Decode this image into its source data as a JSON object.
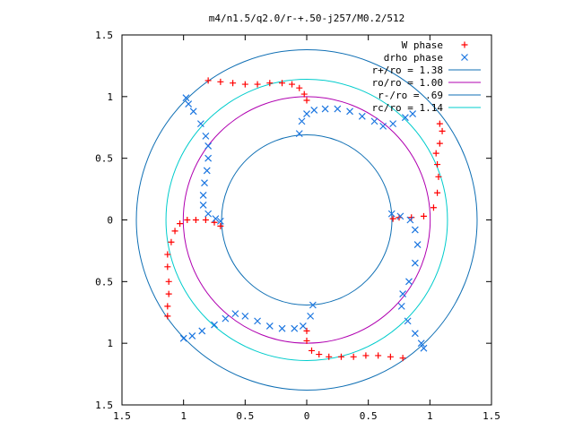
{
  "chart_data": {
    "type": "scatter",
    "title": "m4/n1.5/q2.0/r-+.50-j257/M0.2/512",
    "xlabel": "",
    "ylabel": "",
    "xlim": [
      -1.5,
      1.5
    ],
    "ylim": [
      -1.5,
      1.5
    ],
    "x_tick_values": [
      -1.5,
      -1,
      -0.5,
      0,
      0.5,
      1,
      1.5
    ],
    "x_tick_labels": [
      "1.5",
      "1",
      "0.5",
      "0",
      "0.5",
      "1",
      "1.5"
    ],
    "y_tick_values": [
      1.5,
      1,
      0.5,
      0,
      -0.5,
      -1,
      -1.5
    ],
    "y_tick_labels": [
      "1.5",
      "1",
      "0.5",
      "0",
      "0.5",
      "1",
      "1.5"
    ],
    "grid": false,
    "legend_position": "top-right",
    "circles": [
      {
        "name": "r+/ro = 1.38",
        "radius": 1.38,
        "color": "#0f6fb4"
      },
      {
        "name": "ro/ro = 1.00",
        "radius": 1.0,
        "color": "#b000b0"
      },
      {
        "name": "r-/ro = .69",
        "radius": 0.69,
        "color": "#0f6fb4"
      },
      {
        "name": "rc/ro = 1.14",
        "radius": 1.14,
        "color": "#00cccc"
      }
    ],
    "series": [
      {
        "name": "W phase",
        "marker": "+",
        "color": "#ff0000",
        "points": [
          [
            -0.8,
            1.13
          ],
          [
            -0.7,
            1.12
          ],
          [
            -0.6,
            1.11
          ],
          [
            -0.5,
            1.1
          ],
          [
            -0.4,
            1.1
          ],
          [
            -0.3,
            1.11
          ],
          [
            -0.2,
            1.11
          ],
          [
            -0.12,
            1.1
          ],
          [
            -0.06,
            1.07
          ],
          [
            -0.02,
            1.02
          ],
          [
            0.0,
            0.97
          ],
          [
            1.08,
            0.78
          ],
          [
            1.1,
            0.72
          ],
          [
            1.08,
            0.62
          ],
          [
            1.05,
            0.54
          ],
          [
            1.06,
            0.45
          ],
          [
            1.07,
            0.35
          ],
          [
            1.06,
            0.22
          ],
          [
            1.03,
            0.1
          ],
          [
            0.95,
            0.03
          ],
          [
            0.85,
            0.02
          ],
          [
            0.75,
            0.02
          ],
          [
            0.7,
            0.01
          ],
          [
            0.78,
            -1.12
          ],
          [
            0.68,
            -1.11
          ],
          [
            0.58,
            -1.1
          ],
          [
            0.48,
            -1.1
          ],
          [
            0.38,
            -1.11
          ],
          [
            0.28,
            -1.11
          ],
          [
            0.18,
            -1.11
          ],
          [
            0.1,
            -1.09
          ],
          [
            0.04,
            -1.06
          ],
          [
            0.0,
            -0.98
          ],
          [
            0.0,
            -0.9
          ],
          [
            -1.13,
            -0.78
          ],
          [
            -1.13,
            -0.7
          ],
          [
            -1.12,
            -0.6
          ],
          [
            -1.12,
            -0.5
          ],
          [
            -1.13,
            -0.38
          ],
          [
            -1.13,
            -0.28
          ],
          [
            -1.1,
            -0.18
          ],
          [
            -1.07,
            -0.09
          ],
          [
            -1.03,
            -0.03
          ],
          [
            -0.97,
            0.0
          ],
          [
            -0.9,
            0.0
          ],
          [
            -0.82,
            0.0
          ],
          [
            -0.75,
            -0.02
          ],
          [
            -0.7,
            -0.05
          ]
        ]
      },
      {
        "name": "drho phase",
        "marker": "x",
        "color": "#1a75e0",
        "points": [
          [
            -0.98,
            0.99
          ],
          [
            -0.96,
            0.94
          ],
          [
            -0.92,
            0.88
          ],
          [
            -0.86,
            0.78
          ],
          [
            -0.82,
            0.68
          ],
          [
            -0.8,
            0.6
          ],
          [
            -0.8,
            0.5
          ],
          [
            -0.81,
            0.4
          ],
          [
            -0.83,
            0.3
          ],
          [
            -0.84,
            0.2
          ],
          [
            -0.84,
            0.12
          ],
          [
            -0.8,
            0.05
          ],
          [
            -0.74,
            0.01
          ],
          [
            -0.7,
            -0.01
          ],
          [
            -0.06,
            0.7
          ],
          [
            -0.04,
            0.8
          ],
          [
            0.0,
            0.86
          ],
          [
            0.06,
            0.89
          ],
          [
            0.15,
            0.9
          ],
          [
            0.25,
            0.9
          ],
          [
            0.35,
            0.88
          ],
          [
            0.45,
            0.84
          ],
          [
            0.55,
            0.8
          ],
          [
            0.62,
            0.76
          ],
          [
            0.7,
            0.78
          ],
          [
            0.8,
            0.83
          ],
          [
            0.86,
            0.86
          ],
          [
            0.69,
            0.05
          ],
          [
            0.76,
            0.03
          ],
          [
            0.84,
            0.0
          ],
          [
            0.88,
            -0.08
          ],
          [
            0.9,
            -0.2
          ],
          [
            0.88,
            -0.35
          ],
          [
            0.83,
            -0.5
          ],
          [
            0.78,
            -0.6
          ],
          [
            0.77,
            -0.7
          ],
          [
            0.82,
            -0.82
          ],
          [
            0.88,
            -0.92
          ],
          [
            0.93,
            -1.0
          ],
          [
            0.95,
            -1.04
          ],
          [
            0.05,
            -0.69
          ],
          [
            0.03,
            -0.78
          ],
          [
            -0.03,
            -0.86
          ],
          [
            -0.1,
            -0.88
          ],
          [
            -0.2,
            -0.88
          ],
          [
            -0.3,
            -0.86
          ],
          [
            -0.4,
            -0.82
          ],
          [
            -0.5,
            -0.78
          ],
          [
            -0.58,
            -0.76
          ],
          [
            -0.66,
            -0.8
          ],
          [
            -0.75,
            -0.85
          ],
          [
            -0.85,
            -0.9
          ],
          [
            -0.93,
            -0.94
          ],
          [
            -1.0,
            -0.96
          ]
        ]
      }
    ]
  }
}
